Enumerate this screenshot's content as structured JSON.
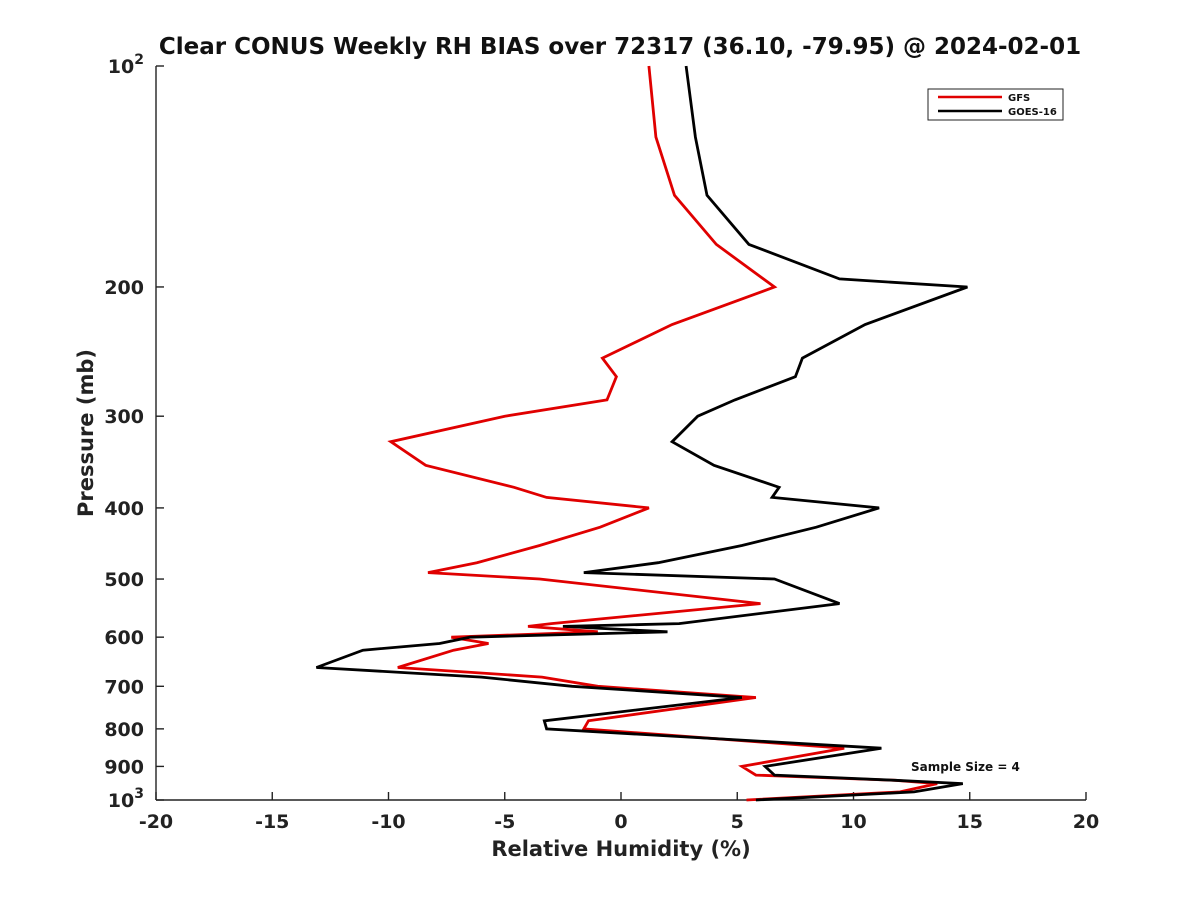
{
  "chart_data": {
    "type": "line",
    "title": "Clear CONUS Weekly RH BIAS over 72317 (36.10, -79.95) @ 2024-02-01",
    "xlabel": "Relative Humidity (%)",
    "ylabel": "Pressure (mb)",
    "xlim": [
      -20,
      20
    ],
    "ylim": [
      100,
      1000
    ],
    "y_scale": "log",
    "y_reversed": true,
    "grid": false,
    "legend_position": "top-right",
    "x_ticks": [
      "-20",
      "-15",
      "-10",
      "-5",
      "0",
      "5",
      "10",
      "15",
      "20"
    ],
    "y_ticks": [
      {
        "value": 100,
        "base": "10",
        "exp": "2"
      },
      {
        "value": 200,
        "label": "200"
      },
      {
        "value": 300,
        "label": "300"
      },
      {
        "value": 400,
        "label": "400"
      },
      {
        "value": 500,
        "label": "500"
      },
      {
        "value": 600,
        "label": "600"
      },
      {
        "value": 700,
        "label": "700"
      },
      {
        "value": 800,
        "label": "800"
      },
      {
        "value": 900,
        "label": "900"
      },
      {
        "value": 1000,
        "base": "10",
        "exp": "3"
      }
    ],
    "annotation": "Sample Size = 4",
    "series": [
      {
        "name": "GFS",
        "color": "#e00000",
        "points": [
          [
            1.2,
            100
          ],
          [
            1.5,
            125
          ],
          [
            2.3,
            150
          ],
          [
            4.1,
            175
          ],
          [
            6.6,
            200
          ],
          [
            2.2,
            225
          ],
          [
            -0.8,
            250
          ],
          [
            -0.2,
            265
          ],
          [
            -0.6,
            285
          ],
          [
            -5.0,
            300
          ],
          [
            -9.9,
            325
          ],
          [
            -8.4,
            350
          ],
          [
            -4.6,
            375
          ],
          [
            -3.2,
            387
          ],
          [
            1.2,
            400
          ],
          [
            -0.9,
            425
          ],
          [
            -3.5,
            450
          ],
          [
            -6.2,
            475
          ],
          [
            -8.3,
            490
          ],
          [
            -3.5,
            500
          ],
          [
            6.0,
            540
          ],
          [
            -3.0,
            575
          ],
          [
            -4.0,
            580
          ],
          [
            -1.0,
            590
          ],
          [
            -7.3,
            600
          ],
          [
            -5.7,
            612
          ],
          [
            -7.2,
            625
          ],
          [
            -9.6,
            660
          ],
          [
            -3.4,
            680
          ],
          [
            -1.0,
            700
          ],
          [
            5.8,
            725
          ],
          [
            -1.4,
            780
          ],
          [
            -1.6,
            800
          ],
          [
            9.6,
            850
          ],
          [
            5.2,
            900
          ],
          [
            5.8,
            925
          ],
          [
            11.8,
            940
          ],
          [
            13.6,
            950
          ],
          [
            12.0,
            975
          ],
          [
            5.4,
            1000
          ]
        ]
      },
      {
        "name": "GOES-16",
        "color": "#000000",
        "points": [
          [
            2.8,
            100
          ],
          [
            3.2,
            125
          ],
          [
            3.7,
            150
          ],
          [
            5.5,
            175
          ],
          [
            9.4,
            195
          ],
          [
            14.9,
            200
          ],
          [
            10.5,
            225
          ],
          [
            7.8,
            250
          ],
          [
            7.5,
            265
          ],
          [
            4.9,
            285
          ],
          [
            3.3,
            300
          ],
          [
            2.2,
            325
          ],
          [
            4.0,
            350
          ],
          [
            6.8,
            375
          ],
          [
            6.5,
            387
          ],
          [
            11.1,
            400
          ],
          [
            8.4,
            425
          ],
          [
            5.2,
            450
          ],
          [
            1.6,
            475
          ],
          [
            -1.6,
            490
          ],
          [
            6.6,
            500
          ],
          [
            9.4,
            540
          ],
          [
            2.5,
            575
          ],
          [
            -2.5,
            580
          ],
          [
            2.0,
            590
          ],
          [
            -6.5,
            600
          ],
          [
            -7.8,
            612
          ],
          [
            -11.1,
            625
          ],
          [
            -13.1,
            660
          ],
          [
            -6.0,
            680
          ],
          [
            -2.1,
            700
          ],
          [
            5.2,
            725
          ],
          [
            -3.3,
            780
          ],
          [
            -3.2,
            800
          ],
          [
            11.2,
            850
          ],
          [
            6.2,
            900
          ],
          [
            6.6,
            925
          ],
          [
            11.8,
            940
          ],
          [
            14.7,
            950
          ],
          [
            12.6,
            975
          ],
          [
            5.8,
            1000
          ]
        ]
      }
    ]
  }
}
